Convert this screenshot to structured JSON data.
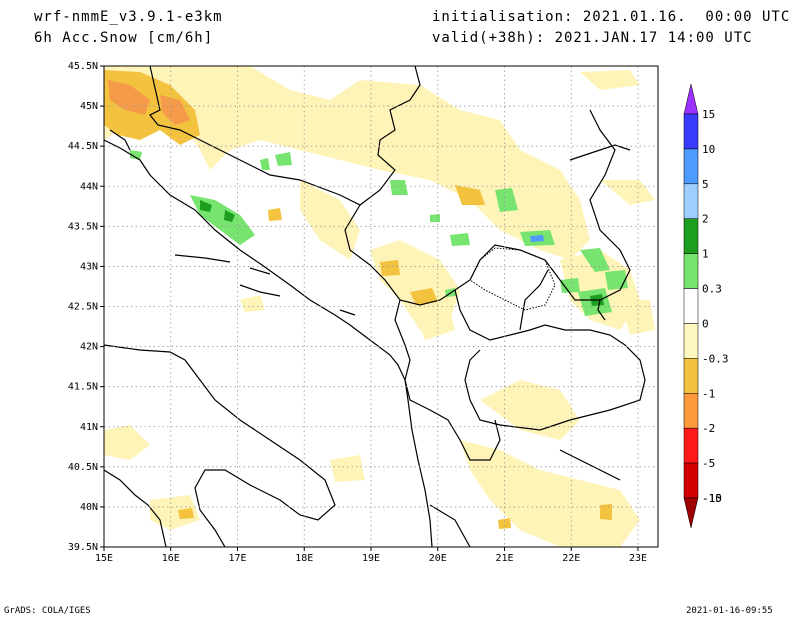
{
  "header": {
    "model": "wrf-nmmE_v3.9.1-e3km",
    "field": "6h Acc.Snow [cm/6h]",
    "init": "initialisation: 2021.01.16.  00:00 UTC",
    "valid": "valid(+38h): 2021.JAN.17 14:00 UTC"
  },
  "footer": {
    "left": "GrADS: COLA/IGES",
    "right": "2021-01-16-09:55"
  },
  "map": {
    "lon_range": [
      15,
      23.3
    ],
    "lat_range": [
      39.5,
      45.5
    ],
    "lon_ticks": [
      {
        "v": 15,
        "label": "15E"
      },
      {
        "v": 16,
        "label": "16E"
      },
      {
        "v": 17,
        "label": "17E"
      },
      {
        "v": 18,
        "label": "18E"
      },
      {
        "v": 19,
        "label": "19E"
      },
      {
        "v": 20,
        "label": "20E"
      },
      {
        "v": 21,
        "label": "21E"
      },
      {
        "v": 22,
        "label": "22E"
      },
      {
        "v": 23,
        "label": "23E"
      }
    ],
    "lat_ticks": [
      {
        "v": 39.5,
        "label": "39.5N"
      },
      {
        "v": 40,
        "label": "40N"
      },
      {
        "v": 40.5,
        "label": "40.5N"
      },
      {
        "v": 41,
        "label": "41N"
      },
      {
        "v": 41.5,
        "label": "41.5N"
      },
      {
        "v": 42,
        "label": "42N"
      },
      {
        "v": 42.5,
        "label": "42.5N"
      },
      {
        "v": 43,
        "label": "43N"
      },
      {
        "v": 43.5,
        "label": "43.5N"
      },
      {
        "v": 44,
        "label": "44N"
      },
      {
        "v": 44.5,
        "label": "44.5N"
      },
      {
        "v": 45,
        "label": "45N"
      },
      {
        "v": 45.5,
        "label": "45.5N"
      }
    ],
    "grid": true
  },
  "colorbar": {
    "labels": [
      "15",
      "10",
      "5",
      "2",
      "1",
      "0.3",
      "0",
      "-0.3",
      "-1",
      "-2",
      "-5",
      "-10",
      "-15"
    ],
    "colors": [
      "#9b30ff",
      "#3a3aff",
      "#4d9bff",
      "#9fcfff",
      "#1e9e1e",
      "#76e46e",
      "#ffffff",
      "#fff7c0",
      "#f3c23f",
      "#ff9a3c",
      "#ff1a1a",
      "#d00000",
      "#9e0000"
    ]
  },
  "snow_colors": {
    "light_yellow": "#fff4b8",
    "yellow": "#f3c23f",
    "orange": "#f49a48",
    "light_green": "#76e46e",
    "green": "#1e9e1e",
    "blue": "#4d9bff"
  }
}
